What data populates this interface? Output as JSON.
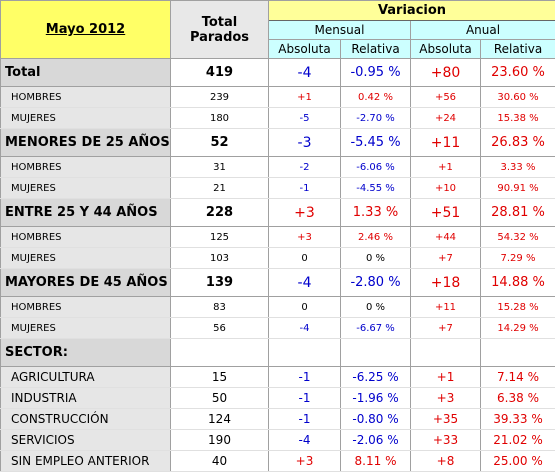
{
  "header": {
    "title": "Mayo 2012",
    "total": "Total Parados",
    "variacion": "Variacion",
    "periods": [
      "Mensual",
      "Anual"
    ],
    "measures": [
      "Absoluta",
      "Relativa",
      "Absoluta",
      "Relativa"
    ]
  },
  "groups": [
    {
      "label": "Total",
      "cells": [
        "419",
        "-4",
        "-0.95 %",
        "+80",
        "23.60 %"
      ],
      "rows": [
        {
          "label": "HOMBRES",
          "cells": [
            "239",
            "+1",
            "0.42 %",
            "+56",
            "30.60 %"
          ]
        },
        {
          "label": "MUJERES",
          "cells": [
            "180",
            "-5",
            "-2.70 %",
            "+24",
            "15.38 %"
          ]
        }
      ]
    },
    {
      "label": "MENORES DE 25 AÑOS:",
      "cells": [
        "52",
        "-3",
        "-5.45 %",
        "+11",
        "26.83 %"
      ],
      "rows": [
        {
          "label": "HOMBRES",
          "cells": [
            "31",
            "-2",
            "-6.06 %",
            "+1",
            "3.33 %"
          ]
        },
        {
          "label": "MUJERES",
          "cells": [
            "21",
            "-1",
            "-4.55 %",
            "+10",
            "90.91 %"
          ]
        }
      ]
    },
    {
      "label": "ENTRE 25 Y 44 AÑOS",
      "cells": [
        "228",
        "+3",
        "1.33 %",
        "+51",
        "28.81 %"
      ],
      "rows": [
        {
          "label": "HOMBRES",
          "cells": [
            "125",
            "+3",
            "2.46 %",
            "+44",
            "54.32 %"
          ]
        },
        {
          "label": "MUJERES",
          "cells": [
            "103",
            "0",
            "0 %",
            "+7",
            "7.29 %"
          ]
        }
      ]
    },
    {
      "label": "MAYORES DE 45 AÑOS",
      "cells": [
        "139",
        "-4",
        "-2.80 %",
        "+18",
        "14.88 %"
      ],
      "rows": [
        {
          "label": "HOMBRES",
          "cells": [
            "83",
            "0",
            "0 %",
            "+11",
            "15.28 %"
          ]
        },
        {
          "label": "MUJERES",
          "cells": [
            "56",
            "-4",
            "-6.67 %",
            "+7",
            "14.29 %"
          ]
        }
      ]
    },
    {
      "label": "SECTOR:",
      "rows": [
        {
          "label": "AGRICULTURA",
          "cells": [
            "15",
            "-1",
            "-6.25 %",
            "+1",
            "7.14 %"
          ]
        },
        {
          "label": "INDUSTRIA",
          "cells": [
            "50",
            "-1",
            "-1.96 %",
            "+3",
            "6.38 %"
          ]
        },
        {
          "label": "CONSTRUCCIÓN",
          "cells": [
            "124",
            "-1",
            "-0.80 %",
            "+35",
            "39.33 %"
          ]
        },
        {
          "label": "SERVICIOS",
          "cells": [
            "190",
            "-4",
            "-2.06 %",
            "+33",
            "21.02 %"
          ]
        },
        {
          "label": "SIN EMPLEO ANTERIOR",
          "cells": [
            "40",
            "+3",
            "8.11 %",
            "+8",
            "25.00 %"
          ]
        }
      ]
    }
  ]
}
